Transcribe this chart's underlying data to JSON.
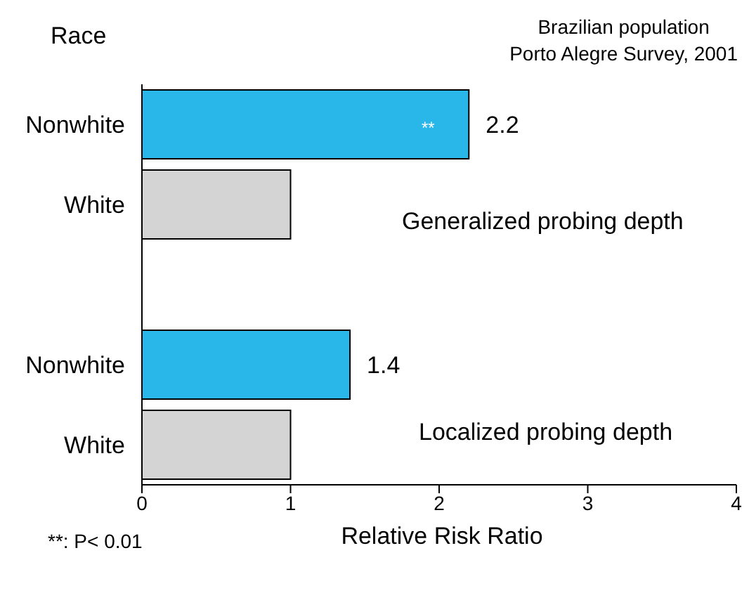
{
  "chart_data": {
    "type": "bar",
    "orientation": "horizontal",
    "title": "Brazilian population",
    "subtitle": "Porto Alegre Survey, 2001",
    "xlabel": "Relative Risk Ratio",
    "ylabel": "Race",
    "categories": [
      "Nonwhite",
      "White",
      null,
      "Nonwhite",
      "White"
    ],
    "values": [
      2.2,
      1,
      null,
      1.4,
      1
    ],
    "colors": [
      "#29b6e8",
      "#d4d4d4",
      null,
      "#29b6e8",
      "#d4d4d4"
    ],
    "value_labels": [
      "2.2",
      null,
      null,
      "1.4",
      null
    ],
    "xlim": [
      0,
      4
    ],
    "xticks": [
      0,
      1,
      2,
      3,
      4
    ],
    "grid": false,
    "annotations": [
      "**",
      "Generalized probing depth",
      "Localized probing depth",
      "**: P< 0.01"
    ]
  }
}
